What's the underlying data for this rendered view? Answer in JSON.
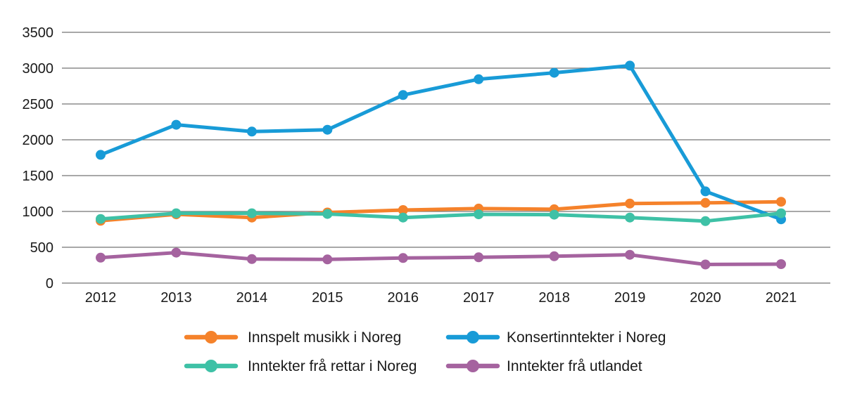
{
  "figure": {
    "background": "#ffffff",
    "text_color": "#1a1a1a",
    "grid_color": "#757575"
  },
  "chart_data": {
    "type": "line",
    "title": "",
    "xlabel": "",
    "ylabel": "",
    "categories": [
      "2012",
      "2013",
      "2014",
      "2015",
      "2016",
      "2017",
      "2018",
      "2019",
      "2020",
      "2021"
    ],
    "series": [
      {
        "name": "Innspelt musikk i Noreg",
        "color": "#F5822B",
        "values": [
          870,
          960,
          915,
          985,
          1020,
          1040,
          1030,
          1110,
          1120,
          1135
        ]
      },
      {
        "name": "Konsertinntekter i Noreg",
        "color": "#189BD7",
        "values": [
          1790,
          2210,
          2115,
          2140,
          2625,
          2845,
          2935,
          3035,
          1280,
          890
        ]
      },
      {
        "name": "Inntekter frå rettar i Noreg",
        "color": "#3EC1A6",
        "values": [
          895,
          975,
          975,
          965,
          915,
          960,
          955,
          915,
          865,
          975
        ]
      },
      {
        "name": "Inntekter frå utlandet",
        "color": "#A5639F",
        "values": [
          355,
          425,
          335,
          330,
          350,
          360,
          375,
          395,
          260,
          265
        ]
      }
    ],
    "ylim": [
      0,
      3500
    ],
    "yticks": [
      0,
      500,
      1000,
      1500,
      2000,
      2500,
      3000,
      3500
    ],
    "grid": "horizontal-only",
    "marker": "circle",
    "legend_position": "bottom",
    "legend_columns": 2,
    "legend_marker_style": "line-with-dot"
  }
}
